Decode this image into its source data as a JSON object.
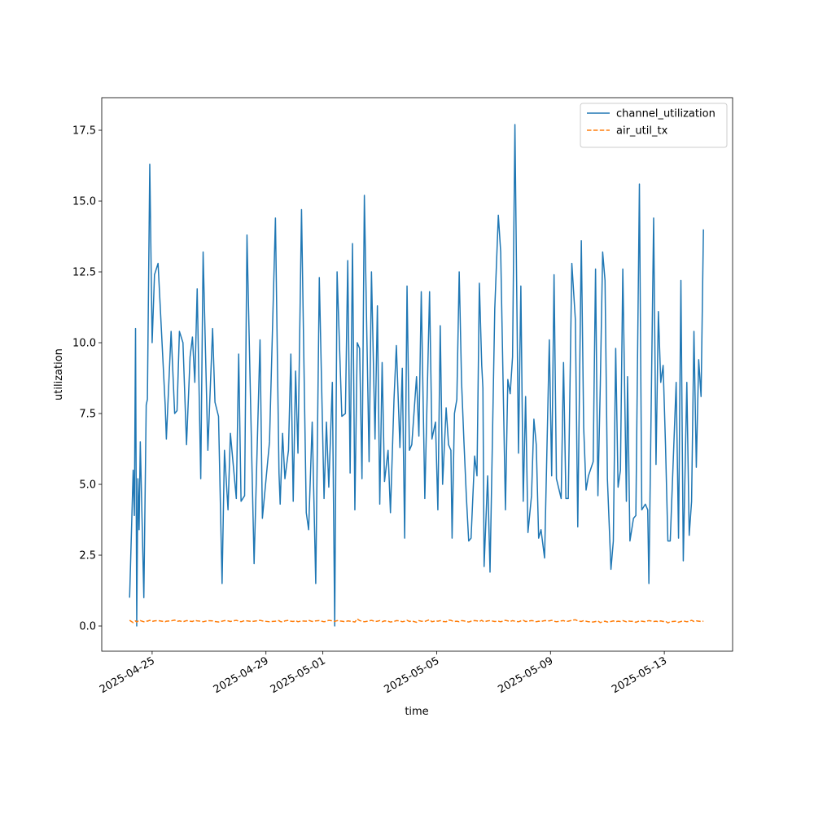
{
  "chart_data": {
    "type": "line",
    "xlabel": "time",
    "ylabel": "utilization",
    "x": [
      "2025-04-24 05:00",
      "2025-04-24 08:00",
      "2025-04-24 09:00",
      "2025-04-24 10:00",
      "2025-04-24 11:00",
      "2025-04-24 12:00",
      "2025-04-24 13:00",
      "2025-04-24 14:00",
      "2025-04-24 17:00",
      "2025-04-24 19:00",
      "2025-04-24 20:00",
      "2025-04-24 22:00",
      "2025-04-25 00:00",
      "2025-04-25 02:00",
      "2025-04-25 05:00",
      "2025-04-25 11:00",
      "2025-04-25 12:00",
      "2025-04-25 16:00",
      "2025-04-25 19:00",
      "2025-04-25 21:00",
      "2025-04-25 23:00",
      "2025-04-26 02:00",
      "2025-04-26 05:00",
      "2025-04-26 08:00",
      "2025-04-26 10:00",
      "2025-04-26 12:00",
      "2025-04-26 14:00",
      "2025-04-26 17:00",
      "2025-04-26 19:00",
      "2025-04-26 23:00",
      "2025-04-27 03:00",
      "2025-04-27 05:00",
      "2025-04-27 08:00",
      "2025-04-27 11:00",
      "2025-04-27 13:00",
      "2025-04-27 16:00",
      "2025-04-27 18:00",
      "2025-04-27 23:00",
      "2025-04-28 01:00",
      "2025-04-28 03:00",
      "2025-04-28 06:00",
      "2025-04-28 08:00",
      "2025-04-28 12:00",
      "2025-04-28 14:00",
      "2025-04-28 19:00",
      "2025-04-28 21:00",
      "2025-04-29 03:00",
      "2025-04-29 08:00",
      "2025-04-29 11:00",
      "2025-04-29 12:00",
      "2025-04-29 14:00",
      "2025-04-29 16:00",
      "2025-04-29 19:00",
      "2025-04-29 21:00",
      "2025-04-29 23:00",
      "2025-04-30 01:00",
      "2025-04-30 03:00",
      "2025-04-30 06:00",
      "2025-04-30 10:00",
      "2025-04-30 12:00",
      "2025-04-30 15:00",
      "2025-04-30 18:00",
      "2025-04-30 21:00",
      "2025-05-01 01:00",
      "2025-05-01 03:00",
      "2025-05-01 05:00",
      "2025-05-01 08:00",
      "2025-05-01 10:00",
      "2025-05-01 12:00",
      "2025-05-01 16:00",
      "2025-05-01 19:00",
      "2025-05-01 21:00",
      "2025-05-01 23:00",
      "2025-05-02 01:00",
      "2025-05-02 03:00",
      "2025-05-02 05:00",
      "2025-05-02 07:00",
      "2025-05-02 09:00",
      "2025-05-02 11:00",
      "2025-05-02 15:00",
      "2025-05-02 17:00",
      "2025-05-02 20:00",
      "2025-05-02 22:00",
      "2025-05-03 00:00",
      "2025-05-03 02:00",
      "2025-05-03 04:00",
      "2025-05-03 07:00",
      "2025-05-03 09:00",
      "2025-05-03 12:00",
      "2025-05-03 14:00",
      "2025-05-03 17:00",
      "2025-05-03 19:00",
      "2025-05-03 21:00",
      "2025-05-03 23:00",
      "2025-05-04 01:00",
      "2025-05-04 03:00",
      "2025-05-04 07:00",
      "2025-05-04 09:00",
      "2025-05-04 11:00",
      "2025-05-04 14:00",
      "2025-05-04 18:00",
      "2025-05-04 20:00",
      "2025-05-04 23:00",
      "2025-05-05 01:00",
      "2025-05-05 03:00",
      "2025-05-05 05:00",
      "2025-05-05 08:00",
      "2025-05-05 10:00",
      "2025-05-05 12:00",
      "2025-05-05 13:00",
      "2025-05-05 15:00",
      "2025-05-05 17:00",
      "2025-05-05 19:00",
      "2025-05-05 21:00",
      "2025-05-05 23:00",
      "2025-05-06 01:00",
      "2025-05-06 03:00",
      "2025-05-06 05:00",
      "2025-05-06 08:00",
      "2025-05-06 10:00",
      "2025-05-06 12:00",
      "2025-05-06 14:00",
      "2025-05-06 15:00",
      "2025-05-06 16:00",
      "2025-05-06 19:00",
      "2025-05-06 21:00",
      "2025-05-07 01:00",
      "2025-05-07 04:00",
      "2025-05-07 06:00",
      "2025-05-07 10:00",
      "2025-05-07 12:00",
      "2025-05-07 14:00",
      "2025-05-07 16:00",
      "2025-05-07 18:00",
      "2025-05-07 21:00",
      "2025-05-07 23:00",
      "2025-05-08 01:00",
      "2025-05-08 03:00",
      "2025-05-08 05:00",
      "2025-05-08 08:00",
      "2025-05-08 10:00",
      "2025-05-08 12:00",
      "2025-05-08 14:00",
      "2025-05-08 16:00",
      "2025-05-08 19:00",
      "2025-05-08 23:00",
      "2025-05-09 01:00",
      "2025-05-09 03:00",
      "2025-05-09 05:00",
      "2025-05-09 09:00",
      "2025-05-09 11:00",
      "2025-05-09 13:00",
      "2025-05-09 15:00",
      "2025-05-09 18:00",
      "2025-05-09 21:00",
      "2025-05-09 23:00",
      "2025-05-10 02:00",
      "2025-05-10 04:00",
      "2025-05-10 06:00",
      "2025-05-10 08:00",
      "2025-05-10 12:00",
      "2025-05-10 14:00",
      "2025-05-10 16:00",
      "2025-05-10 18:00",
      "2025-05-10 20:00",
      "2025-05-10 22:00",
      "2025-05-11 00:00",
      "2025-05-11 03:00",
      "2025-05-11 05:00",
      "2025-05-11 07:00",
      "2025-05-11 09:00",
      "2025-05-11 11:00",
      "2025-05-11 13:00",
      "2025-05-11 16:00",
      "2025-05-11 17:00",
      "2025-05-11 19:00",
      "2025-05-11 22:00",
      "2025-05-12 00:00",
      "2025-05-12 03:00",
      "2025-05-12 05:00",
      "2025-05-12 08:00",
      "2025-05-12 10:00",
      "2025-05-12 11:00",
      "2025-05-12 15:00",
      "2025-05-12 17:00",
      "2025-05-12 19:00",
      "2025-05-12 21:00",
      "2025-05-12 23:00",
      "2025-05-13 01:00",
      "2025-05-13 03:00",
      "2025-05-13 05:00",
      "2025-05-13 10:00",
      "2025-05-13 12:00",
      "2025-05-13 14:00",
      "2025-05-13 16:00",
      "2025-05-13 19:00",
      "2025-05-13 21:00",
      "2025-05-13 23:00",
      "2025-05-14 01:00",
      "2025-05-14 03:00",
      "2025-05-14 05:00",
      "2025-05-14 07:00",
      "2025-05-14 09:00"
    ],
    "series": [
      {
        "name": "channel_utilization",
        "color": "#1f77b4",
        "dash": false,
        "values": [
          1.0,
          5.5,
          3.9,
          10.5,
          0.0,
          5.2,
          3.4,
          6.5,
          1.0,
          7.8,
          8.0,
          16.3,
          10.0,
          12.4,
          12.8,
          7.8,
          6.6,
          10.4,
          7.5,
          7.6,
          10.4,
          10.0,
          6.4,
          9.5,
          10.2,
          8.6,
          11.9,
          5.2,
          13.2,
          6.2,
          10.5,
          7.9,
          7.4,
          1.5,
          6.2,
          4.1,
          6.8,
          4.5,
          9.6,
          4.4,
          4.6,
          13.8,
          6.0,
          2.2,
          10.1,
          3.8,
          6.5,
          14.4,
          5.4,
          4.3,
          6.8,
          5.2,
          6.2,
          9.6,
          4.4,
          9.0,
          6.1,
          14.7,
          4.0,
          3.4,
          7.2,
          1.5,
          12.3,
          4.5,
          7.2,
          4.9,
          8.6,
          0.0,
          12.5,
          7.4,
          7.5,
          12.9,
          5.4,
          13.5,
          4.1,
          10.0,
          9.8,
          5.2,
          15.2,
          5.8,
          12.5,
          6.6,
          11.3,
          4.3,
          9.3,
          5.1,
          6.2,
          4.0,
          8.0,
          9.9,
          6.3,
          9.1,
          3.1,
          12.0,
          6.2,
          6.4,
          8.8,
          6.7,
          11.8,
          4.5,
          11.8,
          6.6,
          7.2,
          4.1,
          10.6,
          5.0,
          7.7,
          6.4,
          6.2,
          3.1,
          7.5,
          8.0,
          12.5,
          8.6,
          6.5,
          4.6,
          3.0,
          3.1,
          6.0,
          5.3,
          12.1,
          9.2,
          8.4,
          2.1,
          5.3,
          1.9,
          11.2,
          14.5,
          13.2,
          4.1,
          8.7,
          8.2,
          9.5,
          17.7,
          6.1,
          12.0,
          4.4,
          8.1,
          3.3,
          4.6,
          7.3,
          6.4,
          3.1,
          3.4,
          2.4,
          10.1,
          5.3,
          12.4,
          5.2,
          4.5,
          9.3,
          4.5,
          4.5,
          12.8,
          10.8,
          3.5,
          13.6,
          7.0,
          4.8,
          5.3,
          5.8,
          12.6,
          4.6,
          8.5,
          13.2,
          12.2,
          5.2,
          2.0,
          3.0,
          9.8,
          4.9,
          5.5,
          12.6,
          4.4,
          8.8,
          3.0,
          3.8,
          3.9,
          15.6,
          4.1,
          4.3,
          4.1,
          1.5,
          14.4,
          5.7,
          11.1,
          8.6,
          9.2,
          6.4,
          3.0,
          3.0,
          8.6,
          3.1,
          12.2,
          2.3,
          8.6,
          3.2,
          4.4,
          10.4,
          5.6,
          9.4,
          8.1,
          14.0
        ]
      },
      {
        "name": "air_util_tx",
        "color": "#ff7f0e",
        "dash": true,
        "values": [
          0.2,
          0.12,
          0.15,
          0.18,
          0.14,
          0.17,
          0.16,
          0.19,
          0.15,
          0.18,
          0.17,
          0.2,
          0.16,
          0.18,
          0.19,
          0.15,
          0.17,
          0.18,
          0.21,
          0.16,
          0.18,
          0.15,
          0.19,
          0.17,
          0.16,
          0.2,
          0.18,
          0.17,
          0.15,
          0.19,
          0.18,
          0.16,
          0.14,
          0.17,
          0.19,
          0.18,
          0.16,
          0.2,
          0.17,
          0.15,
          0.19,
          0.18,
          0.16,
          0.17,
          0.2,
          0.18,
          0.15,
          0.17,
          0.19,
          0.16,
          0.14,
          0.18,
          0.2,
          0.17,
          0.16,
          0.19,
          0.15,
          0.18,
          0.17,
          0.2,
          0.16,
          0.18,
          0.19,
          0.15,
          0.17,
          0.2,
          0.18,
          0.16,
          0.19,
          0.17,
          0.15,
          0.18,
          0.17,
          0.16,
          0.14,
          0.25,
          0.19,
          0.17,
          0.15,
          0.18,
          0.2,
          0.16,
          0.17,
          0.19,
          0.15,
          0.18,
          0.17,
          0.14,
          0.16,
          0.19,
          0.18,
          0.15,
          0.17,
          0.2,
          0.16,
          0.18,
          0.13,
          0.19,
          0.17,
          0.16,
          0.22,
          0.15,
          0.18,
          0.17,
          0.19,
          0.16,
          0.15,
          0.21,
          0.2,
          0.18,
          0.16,
          0.17,
          0.15,
          0.19,
          0.18,
          0.16,
          0.14,
          0.17,
          0.19,
          0.18,
          0.16,
          0.2,
          0.17,
          0.15,
          0.18,
          0.19,
          0.16,
          0.17,
          0.15,
          0.2,
          0.18,
          0.16,
          0.19,
          0.17,
          0.15,
          0.18,
          0.2,
          0.16,
          0.17,
          0.19,
          0.18,
          0.15,
          0.17,
          0.16,
          0.19,
          0.18,
          0.2,
          0.17,
          0.15,
          0.18,
          0.19,
          0.16,
          0.17,
          0.2,
          0.22,
          0.18,
          0.16,
          0.19,
          0.17,
          0.15,
          0.14,
          0.16,
          0.18,
          0.12,
          0.15,
          0.17,
          0.14,
          0.16,
          0.18,
          0.15,
          0.17,
          0.16,
          0.19,
          0.15,
          0.18,
          0.17,
          0.16,
          0.13,
          0.18,
          0.17,
          0.15,
          0.18,
          0.19,
          0.16,
          0.17,
          0.15,
          0.18,
          0.16,
          0.17,
          0.11,
          0.15,
          0.17,
          0.13,
          0.16,
          0.18,
          0.15,
          0.17,
          0.2,
          0.16,
          0.18,
          0.17,
          0.16,
          0.17
        ]
      }
    ],
    "xlim": [
      "2025-04-23 05:30",
      "2025-05-15 09:36"
    ],
    "xticks": [
      "2025-04-25",
      "2025-04-29",
      "2025-05-01",
      "2025-05-05",
      "2025-05-09",
      "2025-05-13"
    ],
    "ylim": [
      -0.89,
      18.65
    ],
    "yticks": [
      {
        "value": 0,
        "label": "0.0"
      },
      2.5,
      {
        "value": 5,
        "label": "5.0"
      },
      7.5,
      {
        "value": 10,
        "label": "10.0"
      },
      12.5,
      {
        "value": 15,
        "label": "15.0"
      },
      17.5
    ],
    "grid": false,
    "legend": "upper right"
  }
}
